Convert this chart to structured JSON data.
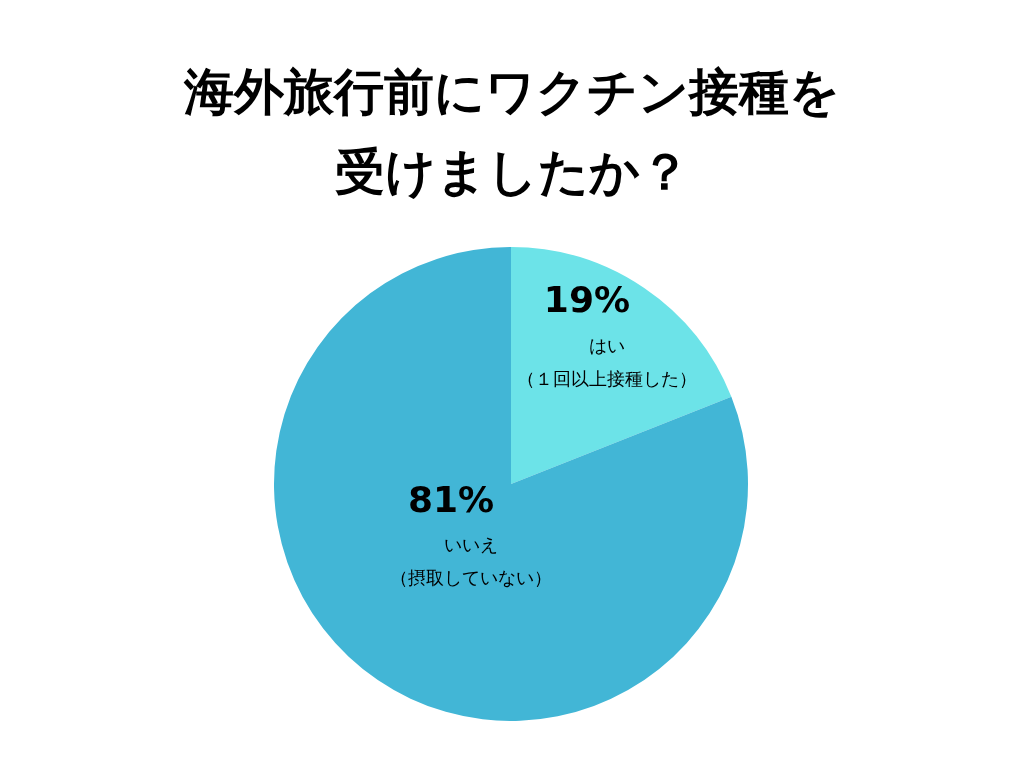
{
  "chart_data": {
    "type": "pie",
    "title": "海外旅行前にワクチン接種を受けましたか？",
    "categories": [
      "はい（１回以上接種した）",
      "いいえ（摂取していない）"
    ],
    "values": [
      19,
      81
    ],
    "colors": [
      "#6ce3e8",
      "#42b6d6"
    ],
    "value_labels": [
      "19%",
      "81%"
    ],
    "legend": false
  }
}
